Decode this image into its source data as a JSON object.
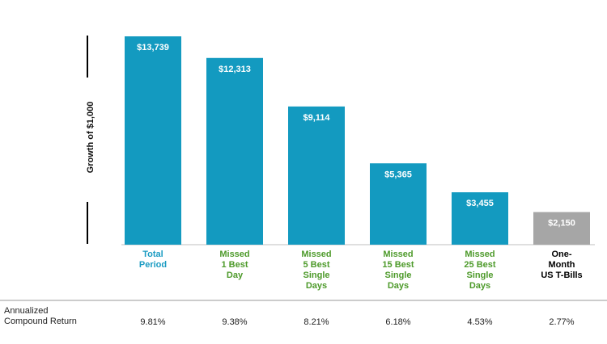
{
  "chart_data": {
    "type": "bar",
    "ylabel": "Growth of $1,000",
    "categories": [
      {
        "lines": [
          "Total",
          "Period"
        ],
        "color": "#1a9bc2"
      },
      {
        "lines": [
          "Missed",
          "1 Best",
          "Day"
        ],
        "color": "#4d9a2a"
      },
      {
        "lines": [
          "Missed",
          "5 Best",
          "Single",
          "Days"
        ],
        "color": "#4d9a2a"
      },
      {
        "lines": [
          "Missed",
          "15 Best",
          "Single",
          "Days"
        ],
        "color": "#4d9a2a"
      },
      {
        "lines": [
          "Missed",
          "25 Best",
          "Single",
          "Days"
        ],
        "color": "#4d9a2a"
      },
      {
        "lines": [
          "One-",
          "Month",
          "US T-Bills"
        ],
        "color": "#000000"
      }
    ],
    "values": [
      13739,
      12313,
      9114,
      5365,
      3455,
      2150
    ],
    "data_labels": [
      "$13,739",
      "$12,313",
      "$9,114",
      "$5,365",
      "$3,455",
      "$2,150"
    ],
    "bar_colors": [
      "#139ac0",
      "#139ac0",
      "#139ac0",
      "#139ac0",
      "#139ac0",
      "#a6a6a6"
    ],
    "annualized_compound_return": {
      "title_lines": [
        "Annualized",
        "Compound Return"
      ],
      "values": [
        "9.81%",
        "9.38%",
        "8.21%",
        "6.18%",
        "4.53%",
        "2.77%"
      ]
    }
  }
}
